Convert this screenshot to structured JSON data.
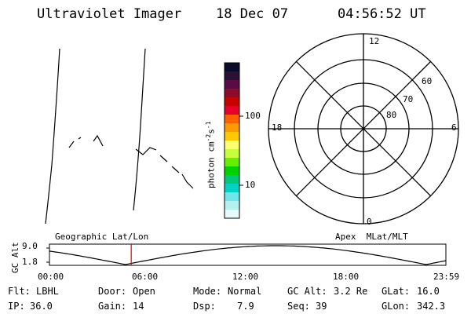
{
  "header": {
    "instrument": "Ultraviolet Imager",
    "date": "18 Dec 07",
    "time": "04:56:52 UT"
  },
  "colorbar": {
    "label_main": "photon cm",
    "label_exp1": "-2",
    "label_s": "s",
    "label_exp2": "-1",
    "ticks": [
      "100",
      "10"
    ],
    "colors": [
      "#0a0a2a",
      "#2d0f36",
      "#5a0a45",
      "#8c0a2a",
      "#c80000",
      "#e8002a",
      "#ff6000",
      "#ff9b00",
      "#ffc800",
      "#ffff70",
      "#c8ff3c",
      "#64f000",
      "#00d200",
      "#00c878",
      "#00d2c8",
      "#6ee6ea",
      "#b4f0f0",
      "#e6fafa"
    ]
  },
  "polar": {
    "mlt_labels": [
      "12",
      "18",
      "6",
      "0"
    ],
    "lat_labels": [
      "60",
      "70",
      "80"
    ]
  },
  "orbit": {
    "left_label": "Geographic Lat/Lon",
    "right_label": "Apex  MLat/MLT",
    "axis_title": "GC Alt",
    "y_ticks": [
      "9.0",
      "1.8"
    ],
    "x_ticks": [
      "00:00",
      "06:00",
      "12:00",
      "18:00",
      "23:59"
    ],
    "marker_hours": 4.95,
    "marker_color": "#e00000"
  },
  "info": {
    "flt_label": "Flt:",
    "flt_value": "LBHL",
    "ip_label": "IP:",
    "ip_value": "36.0",
    "door_label": "Door:",
    "door_value": "Open",
    "gain_label": "Gain:",
    "gain_value": "14",
    "mode_label": "Mode:",
    "mode_value": "Normal",
    "dsp_label": "Dsp:",
    "dsp_value": "7.9",
    "gcalt_label": "GC Alt:",
    "gcalt_value": "3.2 Re",
    "seq_label": "Seq:",
    "seq_value": "39",
    "glat_label": "GLat:",
    "glat_value": "16.0",
    "glon_label": "GLon:",
    "glon_value": "342.3"
  }
}
